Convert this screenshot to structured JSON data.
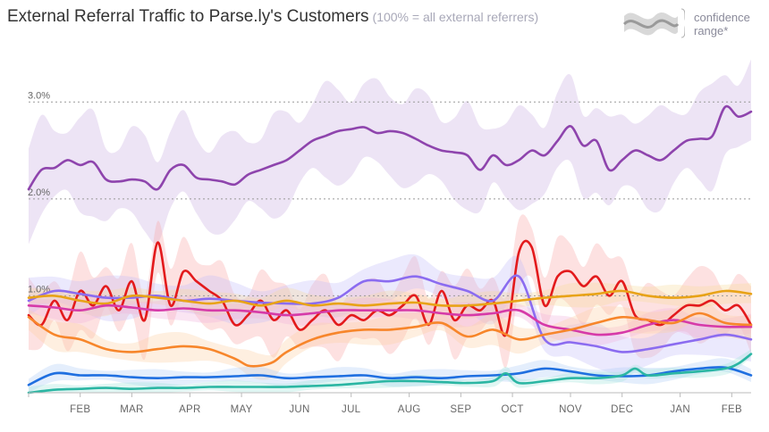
{
  "header": {
    "title": "External Referral Traffic to Parse.ly's Customers",
    "subtitle": "(100% = all external referrers)"
  },
  "legend": {
    "line1": "confidence",
    "line2": "range*",
    "band_color": "#d0d0d0",
    "line_color": "#999999"
  },
  "chart_data": {
    "type": "line",
    "title": "External Referral Traffic to Parse.ly's Customers",
    "subtitle": "(100% = all external referrers)",
    "xlabel": "",
    "ylabel": "",
    "ylim": [
      0,
      3.5
    ],
    "xlim": [
      0,
      56
    ],
    "y_gridlines": [
      {
        "value": 1.0,
        "label": "1.0%"
      },
      {
        "value": 2.0,
        "label": "2.0%"
      },
      {
        "value": 3.0,
        "label": "3.0%"
      }
    ],
    "x_ticks": [
      {
        "x": 0,
        "label": ""
      },
      {
        "x": 4,
        "label": "FEB"
      },
      {
        "x": 8,
        "label": "MAR"
      },
      {
        "x": 12.5,
        "label": "APR"
      },
      {
        "x": 16.5,
        "label": "MAY"
      },
      {
        "x": 21,
        "label": "JUN"
      },
      {
        "x": 25,
        "label": "JUL"
      },
      {
        "x": 29.5,
        "label": "AUG"
      },
      {
        "x": 33.5,
        "label": "SEP"
      },
      {
        "x": 37.5,
        "label": "OCT"
      },
      {
        "x": 42,
        "label": "NOV"
      },
      {
        "x": 46,
        "label": "DEC"
      },
      {
        "x": 50.5,
        "label": "JAN"
      },
      {
        "x": 54.5,
        "label": "FEB"
      }
    ],
    "series": [
      {
        "name": "Purple",
        "color": "#8e44ad",
        "band_color": "#cbb3e3",
        "band_width": 0.42,
        "x": [
          0,
          1,
          2,
          3,
          4,
          5,
          6,
          7,
          8,
          9,
          10,
          11,
          12,
          13,
          14,
          15,
          16,
          17,
          18,
          19,
          20,
          21,
          22,
          23,
          24,
          25,
          26,
          27,
          28,
          29,
          30,
          31,
          32,
          33,
          34,
          35,
          36,
          37,
          38,
          39,
          40,
          41,
          42,
          43,
          44,
          45,
          46,
          47,
          48,
          49,
          50,
          51,
          52,
          53,
          54,
          55,
          56
        ],
        "values": [
          2.1,
          2.3,
          2.32,
          2.4,
          2.35,
          2.38,
          2.2,
          2.18,
          2.2,
          2.18,
          2.1,
          2.3,
          2.35,
          2.22,
          2.2,
          2.18,
          2.15,
          2.25,
          2.3,
          2.35,
          2.4,
          2.5,
          2.6,
          2.65,
          2.7,
          2.72,
          2.74,
          2.68,
          2.7,
          2.68,
          2.62,
          2.55,
          2.5,
          2.48,
          2.45,
          2.3,
          2.45,
          2.35,
          2.4,
          2.5,
          2.45,
          2.6,
          2.75,
          2.55,
          2.6,
          2.3,
          2.4,
          2.5,
          2.45,
          2.4,
          2.5,
          2.6,
          2.62,
          2.65,
          2.95,
          2.85,
          2.9
        ]
      },
      {
        "name": "Red",
        "color": "#e31a1c",
        "band_color": "#f8a8a8",
        "band_width": 0.3,
        "x": [
          0,
          1,
          2,
          3,
          4,
          5,
          6,
          7,
          8,
          9,
          10,
          11,
          12,
          13,
          14,
          15,
          16,
          17,
          18,
          19,
          20,
          21,
          22,
          23,
          24,
          25,
          26,
          27,
          28,
          29,
          30,
          31,
          32,
          33,
          34,
          35,
          36,
          37,
          38,
          39,
          40,
          41,
          42,
          43,
          44,
          45,
          46,
          47,
          48,
          49,
          50,
          51,
          52,
          53,
          54,
          55,
          56
        ],
        "values": [
          0.8,
          0.7,
          0.95,
          0.75,
          1.05,
          0.9,
          1.1,
          0.85,
          1.15,
          0.75,
          1.55,
          0.9,
          1.25,
          1.15,
          1.05,
          0.95,
          0.7,
          0.8,
          0.95,
          0.75,
          0.85,
          0.65,
          0.75,
          0.85,
          0.7,
          0.8,
          0.75,
          0.85,
          0.8,
          0.9,
          1.0,
          0.7,
          1.05,
          0.75,
          0.9,
          0.85,
          0.95,
          0.6,
          1.45,
          1.5,
          0.9,
          1.2,
          1.25,
          1.1,
          1.2,
          1.0,
          1.15,
          0.8,
          0.75,
          0.7,
          0.8,
          0.9,
          0.9,
          0.95,
          0.85,
          0.9,
          0.7
        ]
      },
      {
        "name": "Violet",
        "color": "#8b6cf0",
        "band_color": "#c7c0fa",
        "band_width": 0.18,
        "x": [
          0,
          2,
          4,
          6,
          8,
          10,
          12,
          14,
          16,
          18,
          20,
          22,
          24,
          26,
          28,
          30,
          32,
          34,
          36,
          38,
          40,
          42,
          44,
          46,
          48,
          50,
          52,
          54,
          56
        ],
        "values": [
          0.95,
          1.05,
          1.02,
          0.98,
          0.98,
          1.0,
          0.95,
          0.97,
          0.95,
          0.93,
          0.92,
          0.92,
          0.98,
          1.15,
          1.15,
          1.2,
          1.12,
          1.05,
          0.95,
          1.2,
          0.55,
          0.52,
          0.48,
          0.42,
          0.45,
          0.5,
          0.55,
          0.6,
          0.55
        ]
      },
      {
        "name": "Gold",
        "color": "#e8a317",
        "band_color": "#f7dca0",
        "band_width": 0.1,
        "x": [
          0,
          2,
          4,
          6,
          8,
          10,
          12,
          14,
          16,
          18,
          20,
          22,
          24,
          26,
          28,
          30,
          32,
          34,
          36,
          38,
          40,
          42,
          44,
          46,
          48,
          50,
          52,
          54,
          56
        ],
        "values": [
          0.98,
          1.0,
          0.95,
          0.92,
          1.0,
          0.98,
          0.95,
          0.92,
          0.95,
          0.9,
          0.95,
          0.9,
          0.92,
          0.9,
          0.92,
          0.93,
          0.9,
          0.9,
          0.92,
          0.95,
          0.98,
          1.0,
          1.02,
          1.05,
          1.0,
          0.98,
          1.0,
          1.05,
          1.02
        ]
      },
      {
        "name": "Magenta",
        "color": "#d63aa8",
        "band_color": "#f2b5de",
        "band_width": 0.1,
        "x": [
          0,
          2,
          4,
          6,
          8,
          10,
          12,
          14,
          16,
          18,
          20,
          22,
          24,
          26,
          28,
          30,
          32,
          34,
          36,
          38,
          40,
          42,
          44,
          46,
          48,
          50,
          52,
          54,
          56
        ],
        "values": [
          0.9,
          0.88,
          0.85,
          0.9,
          0.88,
          0.85,
          0.87,
          0.85,
          0.85,
          0.83,
          0.8,
          0.82,
          0.85,
          0.85,
          0.85,
          0.85,
          0.82,
          0.8,
          0.82,
          0.85,
          0.7,
          0.65,
          0.6,
          0.62,
          0.7,
          0.75,
          0.7,
          0.68,
          0.68
        ]
      },
      {
        "name": "Orange",
        "color": "#f7862b",
        "band_color": "#fbd0a6",
        "band_width": 0.12,
        "x": [
          0,
          2,
          4,
          6,
          8,
          10,
          12,
          14,
          16,
          17,
          18,
          19,
          20,
          22,
          24,
          26,
          28,
          30,
          32,
          34,
          36,
          38,
          40,
          42,
          44,
          46,
          48,
          50,
          52,
          54,
          56
        ],
        "values": [
          0.78,
          0.6,
          0.55,
          0.45,
          0.42,
          0.45,
          0.48,
          0.45,
          0.35,
          0.28,
          0.28,
          0.32,
          0.42,
          0.55,
          0.62,
          0.65,
          0.65,
          0.68,
          0.72,
          0.58,
          0.65,
          0.55,
          0.6,
          0.65,
          0.72,
          0.78,
          0.75,
          0.72,
          0.82,
          0.72,
          0.7
        ]
      },
      {
        "name": "Blue",
        "color": "#1f6fe0",
        "band_color": "#b3cff5",
        "band_width": 0.07,
        "x": [
          0,
          2,
          4,
          6,
          8,
          10,
          12,
          14,
          16,
          18,
          20,
          22,
          24,
          26,
          28,
          30,
          32,
          34,
          36,
          38,
          40,
          42,
          44,
          46,
          48,
          50,
          52,
          54,
          56
        ],
        "values": [
          0.08,
          0.2,
          0.18,
          0.18,
          0.16,
          0.15,
          0.16,
          0.16,
          0.17,
          0.18,
          0.15,
          0.16,
          0.17,
          0.18,
          0.15,
          0.16,
          0.15,
          0.17,
          0.18,
          0.2,
          0.25,
          0.22,
          0.18,
          0.17,
          0.18,
          0.22,
          0.25,
          0.26,
          0.18
        ]
      },
      {
        "name": "Teal",
        "color": "#2bb6a3",
        "band_color": "#a6e6dc",
        "band_width": 0.05,
        "x": [
          0,
          2,
          4,
          6,
          8,
          10,
          12,
          14,
          16,
          18,
          20,
          22,
          24,
          26,
          28,
          30,
          32,
          34,
          36,
          37,
          38,
          40,
          42,
          44,
          46,
          47,
          48,
          50,
          52,
          54,
          55,
          56
        ],
        "values": [
          0.0,
          0.03,
          0.04,
          0.05,
          0.04,
          0.05,
          0.05,
          0.06,
          0.06,
          0.06,
          0.06,
          0.07,
          0.08,
          0.1,
          0.12,
          0.12,
          0.11,
          0.1,
          0.12,
          0.2,
          0.1,
          0.12,
          0.15,
          0.15,
          0.18,
          0.25,
          0.18,
          0.2,
          0.22,
          0.25,
          0.3,
          0.4
        ]
      }
    ]
  }
}
